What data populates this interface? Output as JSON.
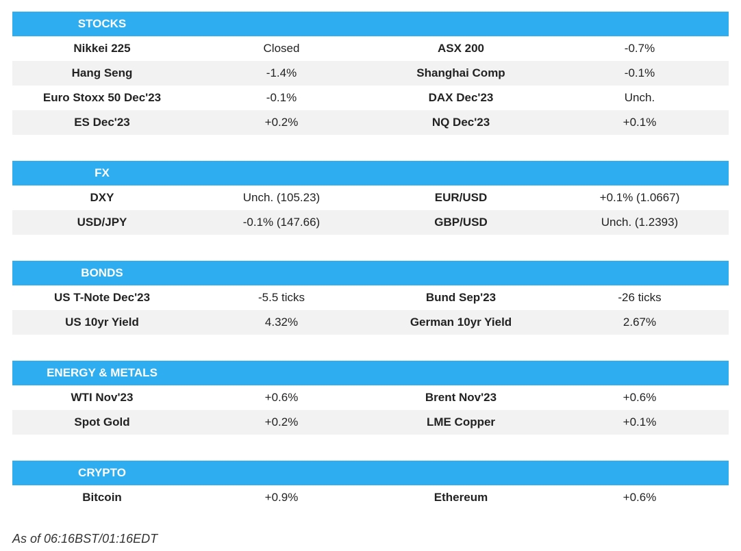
{
  "sections": [
    {
      "title": "STOCKS",
      "rows": [
        [
          "Nikkei 225",
          "Closed",
          "ASX 200",
          "-0.7%"
        ],
        [
          "Hang Seng",
          "-1.4%",
          "Shanghai Comp",
          "-0.1%"
        ],
        [
          "Euro Stoxx 50 Dec'23",
          "-0.1%",
          "DAX Dec'23",
          "Unch."
        ],
        [
          "ES Dec'23",
          "+0.2%",
          "NQ Dec'23",
          "+0.1%"
        ]
      ]
    },
    {
      "title": "FX",
      "rows": [
        [
          "DXY",
          "Unch. (105.23)",
          "EUR/USD",
          "+0.1% (1.0667)"
        ],
        [
          "USD/JPY",
          "-0.1% (147.66)",
          "GBP/USD",
          "Unch. (1.2393)"
        ]
      ]
    },
    {
      "title": "BONDS",
      "rows": [
        [
          "US T-Note Dec'23",
          "-5.5 ticks",
          "Bund Sep'23",
          "-26 ticks"
        ],
        [
          "US 10yr Yield",
          "4.32%",
          "German 10yr Yield",
          "2.67%"
        ]
      ]
    },
    {
      "title": "ENERGY & METALS",
      "rows": [
        [
          "WTI Nov'23",
          "+0.6%",
          "Brent Nov'23",
          "+0.6%"
        ],
        [
          "Spot Gold",
          "+0.2%",
          "LME Copper",
          "+0.1%"
        ]
      ]
    },
    {
      "title": "CRYPTO",
      "rows": [
        [
          "Bitcoin",
          "+0.9%",
          "Ethereum",
          "+0.6%"
        ]
      ]
    }
  ],
  "footer": "As of 06:16BST/01:16EDT",
  "colors": {
    "header_bg": "#2eaef0",
    "header_text": "#ffffff",
    "alt_row_bg": "#f2f2f2"
  }
}
